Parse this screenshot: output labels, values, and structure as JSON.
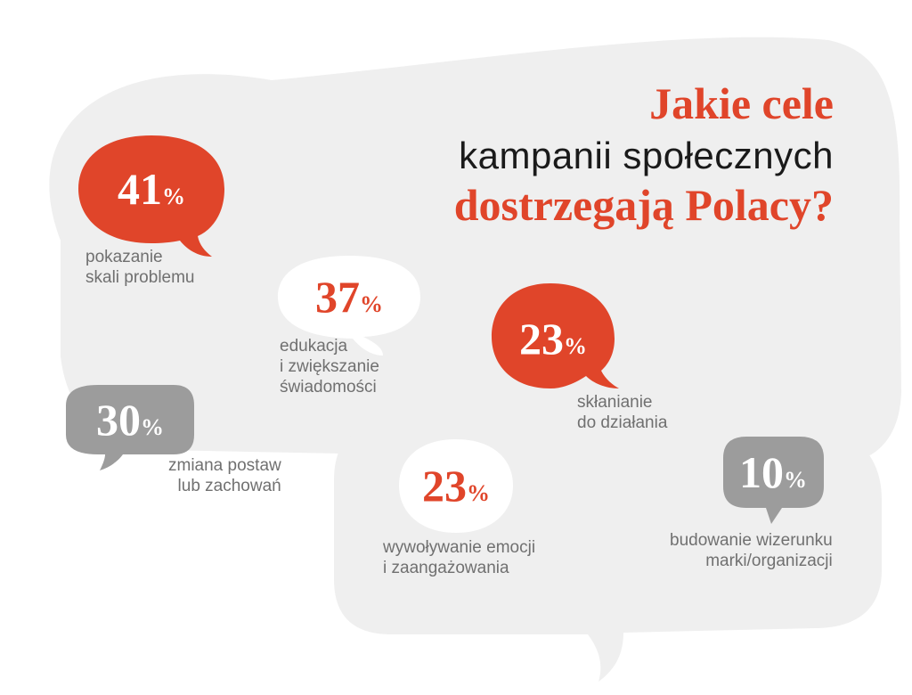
{
  "title": {
    "line1": "Jakie cele",
    "line2": "kampanii społecznych",
    "line3": "dostrzegają Polacy?"
  },
  "colors": {
    "accent": "#e0452a",
    "dark_text": "#1a1a1a",
    "label_text": "#707070",
    "gray_bubble": "#9c9c9c",
    "white_bubble": "#ffffff",
    "background_shape": "#efefef"
  },
  "chart_data": {
    "type": "bar",
    "title": "Jakie cele kampanii społecznych dostrzegają Polacy?",
    "unit": "%",
    "categories": [
      "pokazanie skali problemu",
      "edukacja i zwiększanie świadomości",
      "zmiana postaw lub zachowań",
      "skłanianie do działania",
      "wywoływanie emocji i zaangażowania",
      "budowanie wizerunku marki/organizacji"
    ],
    "values": [
      41,
      37,
      30,
      23,
      23,
      10
    ],
    "items": [
      {
        "id": "show-problem",
        "value": 41,
        "unit": "%",
        "style": "red",
        "label_lines": [
          "pokazanie",
          "skali problemu"
        ]
      },
      {
        "id": "education",
        "value": 37,
        "unit": "%",
        "style": "white",
        "label_lines": [
          "edukacja",
          "i zwiększanie",
          "świadomości"
        ]
      },
      {
        "id": "attitude",
        "value": 30,
        "unit": "%",
        "style": "gray",
        "label_lines": [
          "zmiana postaw",
          "lub zachowań"
        ]
      },
      {
        "id": "action",
        "value": 23,
        "unit": "%",
        "style": "red",
        "label_lines": [
          "skłanianie",
          "do działania"
        ]
      },
      {
        "id": "emotion",
        "value": 23,
        "unit": "%",
        "style": "white",
        "label_lines": [
          "wywoływanie emocji",
          "i zaangażowania"
        ]
      },
      {
        "id": "brand",
        "value": 10,
        "unit": "%",
        "style": "gray",
        "label_lines": [
          "budowanie wizerunku",
          "marki/organizacji"
        ]
      }
    ]
  }
}
